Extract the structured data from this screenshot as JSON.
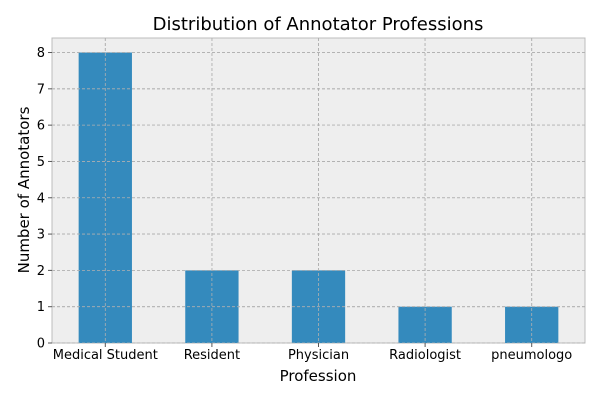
{
  "chart_data": {
    "type": "bar",
    "title": "Distribution of Annotator Professions",
    "xlabel": "Profession",
    "ylabel": "Number of Annotators",
    "categories": [
      "Medical Student",
      "Resident",
      "Physician",
      "Radiologist",
      "pneumologo"
    ],
    "values": [
      8,
      2,
      2,
      1,
      1
    ],
    "ylim": [
      0,
      8.4
    ],
    "yticks": [
      0,
      1,
      2,
      3,
      4,
      5,
      6,
      7,
      8
    ],
    "grid": true,
    "bar_color": "#348abd",
    "background_color": "#eeeeee"
  }
}
